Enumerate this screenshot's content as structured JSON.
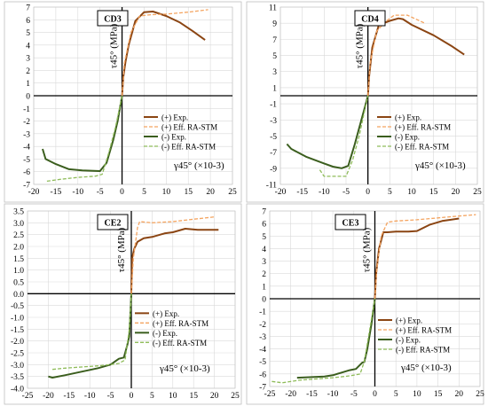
{
  "chart_data": [
    {
      "type": "line",
      "panel_label": "CD3",
      "ylabel": "τ45° (MPa)",
      "xlabel": "γ45° (×10-3)",
      "xlim": [
        -20,
        25
      ],
      "ylim": [
        -7,
        7
      ],
      "x_ticks": [
        -20,
        -15,
        -10,
        -5,
        0,
        5,
        10,
        15,
        20,
        25
      ],
      "y_ticks": [
        -7,
        -6,
        -5,
        -4,
        -3,
        -2,
        -1,
        0,
        1,
        2,
        3,
        4,
        5,
        6,
        7
      ],
      "legend_position": "lower-right",
      "series": [
        {
          "name": "(+) Exp.",
          "color": "#8B4513",
          "dash": "solid",
          "x": [
            0,
            0.3,
            0.8,
            1.5,
            3,
            5,
            7,
            10,
            13,
            16,
            18.8
          ],
          "y": [
            0,
            1.5,
            2.7,
            4,
            5.9,
            6.6,
            6.65,
            6.3,
            5.8,
            5.1,
            4.4
          ]
        },
        {
          "name": "(+) Eff. RA-STM",
          "color": "#F4A460",
          "dash": "dashed",
          "x": [
            0,
            0.5,
            2,
            4,
            6.5,
            10,
            15,
            19.5
          ],
          "y": [
            0,
            2.5,
            5,
            6.3,
            6.4,
            6.45,
            6.6,
            6.8
          ]
        },
        {
          "name": "(-) Exp.",
          "color": "#3B5E1E",
          "dash": "solid",
          "x": [
            -18,
            -17.3,
            -15,
            -12,
            -9,
            -5,
            -3.5,
            -2,
            -1,
            0
          ],
          "y": [
            -4.2,
            -5,
            -5.4,
            -5.8,
            -5.9,
            -5.95,
            -5.3,
            -3.5,
            -2,
            0
          ]
        },
        {
          "name": "(-) Eff. RA-STM",
          "color": "#8FBC5A",
          "dash": "dashed",
          "x": [
            -17,
            -14,
            -10,
            -6,
            -4.5,
            -3,
            -1.5,
            0
          ],
          "y": [
            -6.75,
            -6.6,
            -6.45,
            -6.35,
            -6.2,
            -4.5,
            -2.5,
            0
          ]
        }
      ]
    },
    {
      "type": "line",
      "panel_label": "CD4",
      "ylabel": "τ45° (MPa)",
      "xlabel": "γ45° (×10-3)",
      "xlim": [
        -20,
        25
      ],
      "ylim": [
        -11,
        11
      ],
      "x_ticks": [
        -20,
        -15,
        -10,
        -5,
        0,
        5,
        10,
        15,
        20,
        25
      ],
      "y_ticks": [
        -11,
        -9,
        -7,
        -5,
        -3,
        -1,
        1,
        3,
        5,
        7,
        9,
        11
      ],
      "legend_position": "lower-right",
      "series": [
        {
          "name": "(+) Exp.",
          "color": "#8B4513",
          "dash": "solid",
          "x": [
            0,
            0.3,
            1,
            2.5,
            5,
            7,
            8,
            10,
            15,
            19,
            22
          ],
          "y": [
            0,
            2.5,
            6,
            8.8,
            9.3,
            9.6,
            9.5,
            8.8,
            7.5,
            6.2,
            5.1
          ]
        },
        {
          "name": "(+) Eff. RA-STM",
          "color": "#F4A460",
          "dash": "dashed",
          "x": [
            0,
            0.5,
            2,
            4,
            6,
            9,
            13
          ],
          "y": [
            0,
            4,
            8,
            9.2,
            10,
            10,
            9
          ]
        },
        {
          "name": "(-) Exp.",
          "color": "#3B5E1E",
          "dash": "solid",
          "x": [
            -18.5,
            -17.5,
            -14,
            -10,
            -8,
            -6,
            -4.5,
            -3,
            -1.5,
            0
          ],
          "y": [
            -6,
            -6.6,
            -7.6,
            -8.4,
            -8.8,
            -9,
            -8.7,
            -6,
            -3,
            0
          ]
        },
        {
          "name": "(-) Eff. RA-STM",
          "color": "#8FBC5A",
          "dash": "dashed",
          "x": [
            -11,
            -10,
            -7,
            -5,
            -3.5,
            -2,
            -1,
            0
          ],
          "y": [
            -9.2,
            -10,
            -10,
            -10,
            -8,
            -5,
            -2.5,
            0
          ]
        }
      ]
    },
    {
      "type": "line",
      "panel_label": "CE2",
      "ylabel": "τ45° (MPa)",
      "xlabel": "γ45° (×10-3)",
      "xlim": [
        -25,
        25
      ],
      "ylim": [
        -4,
        3.5
      ],
      "x_ticks": [
        -25,
        -20,
        -15,
        -10,
        -5,
        0,
        5,
        10,
        15,
        20,
        25
      ],
      "y_ticks": [
        -4,
        -3.5,
        -3,
        -2.5,
        -2,
        -1.5,
        -1,
        -0.5,
        0,
        0.5,
        1,
        1.5,
        2,
        2.5,
        3,
        3.5
      ],
      "legend_position": "lower-right",
      "series": [
        {
          "name": "(+) Exp.",
          "color": "#8B4513",
          "dash": "solid",
          "x": [
            0,
            0.2,
            0.7,
            1.5,
            3,
            5,
            8,
            10,
            13,
            16,
            21
          ],
          "y": [
            0,
            1.5,
            1.9,
            2.2,
            2.35,
            2.4,
            2.55,
            2.6,
            2.75,
            2.7,
            2.7
          ]
        },
        {
          "name": "(+) Eff. RA-STM",
          "color": "#F4A460",
          "dash": "dashed",
          "x": [
            0,
            0.5,
            1.5,
            2,
            5,
            10,
            15,
            20
          ],
          "y": [
            0,
            1.5,
            2.8,
            3.05,
            3,
            3.05,
            3.15,
            3.25
          ]
        },
        {
          "name": "(-) Exp.",
          "color": "#3B5E1E",
          "dash": "solid",
          "x": [
            -20,
            -19,
            -16,
            -12,
            -8,
            -5,
            -3,
            -1.8,
            -1,
            -0.5,
            0
          ],
          "y": [
            -3.5,
            -3.55,
            -3.45,
            -3.3,
            -3.15,
            -3,
            -2.75,
            -2.7,
            -2.2,
            -1.8,
            0
          ]
        },
        {
          "name": "(-) Eff. RA-STM",
          "color": "#8FBC5A",
          "dash": "dashed",
          "x": [
            -19,
            -16,
            -12,
            -8,
            -5,
            -3,
            -1.5,
            -0.5,
            0
          ],
          "y": [
            -3.2,
            -3.15,
            -3.1,
            -3.05,
            -3,
            -2.95,
            -2.8,
            -1.5,
            0
          ]
        }
      ]
    },
    {
      "type": "line",
      "panel_label": "CE3",
      "ylabel": "τ45° (MPa)",
      "xlabel": "γ45° (×10-3)",
      "xlim": [
        -25,
        25
      ],
      "ylim": [
        -7,
        7
      ],
      "x_ticks": [
        -25,
        -20,
        -15,
        -10,
        -5,
        0,
        5,
        10,
        15,
        20,
        25
      ],
      "y_ticks": [
        -7,
        -6,
        -5,
        -4,
        -3,
        -2,
        -1,
        0,
        1,
        2,
        3,
        4,
        5,
        6,
        7
      ],
      "legend_position": "lower-right",
      "series": [
        {
          "name": "(+) Exp.",
          "color": "#8B4513",
          "dash": "solid",
          "x": [
            0,
            0.3,
            1,
            2,
            3,
            5,
            8,
            10,
            13,
            16,
            20
          ],
          "y": [
            0,
            2,
            4,
            5.3,
            5.3,
            5.35,
            5.35,
            5.4,
            5.9,
            6.2,
            6.4
          ]
        },
        {
          "name": "(+) Eff. RA-STM",
          "color": "#F4A460",
          "dash": "dashed",
          "x": [
            0,
            0.5,
            1.5,
            3,
            5,
            10,
            15,
            20,
            24
          ],
          "y": [
            0,
            2.5,
            5,
            6.1,
            6.2,
            6.3,
            6.45,
            6.6,
            6.7
          ]
        },
        {
          "name": "(-) Exp.",
          "color": "#3B5E1E",
          "dash": "solid",
          "x": [
            -18.5,
            -15,
            -12,
            -10,
            -8,
            -6,
            -4.5,
            -3,
            -2.5,
            -1.8,
            -0.8,
            0
          ],
          "y": [
            -6.3,
            -6.25,
            -6.2,
            -6.1,
            -5.9,
            -5.7,
            -5.6,
            -5.1,
            -5.05,
            -4,
            -2,
            0
          ]
        },
        {
          "name": "(-) Eff. RA-STM",
          "color": "#8FBC5A",
          "dash": "dashed",
          "x": [
            -24.5,
            -22,
            -18,
            -14,
            -10,
            -6,
            -3.5,
            -2.5,
            -1.5,
            -0.5,
            0
          ],
          "y": [
            -6.6,
            -6.7,
            -6.5,
            -6.4,
            -6.3,
            -6.15,
            -6,
            -5,
            -3,
            -1,
            0
          ]
        }
      ]
    }
  ]
}
